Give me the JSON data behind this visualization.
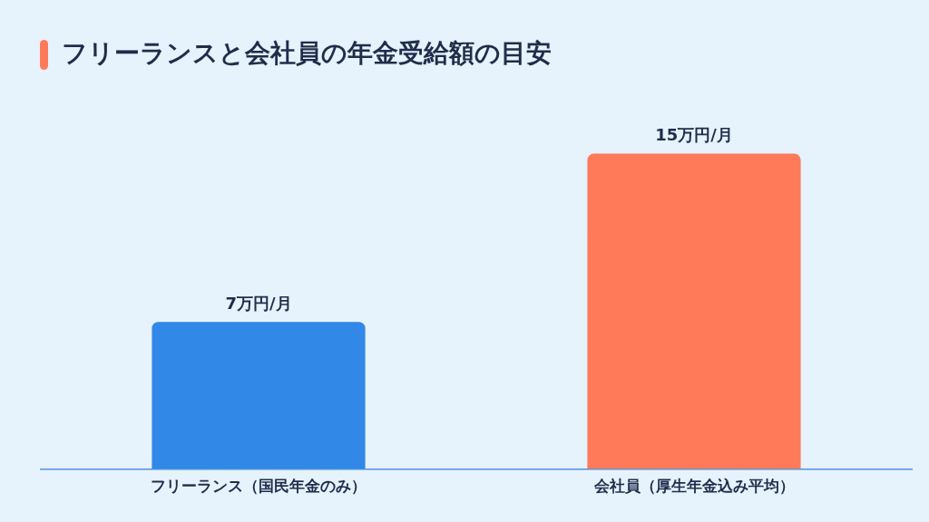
{
  "chart_data": {
    "type": "bar",
    "title": "フリーランスと会社員の年金受給額の目安",
    "categories": [
      "フリーランス（国民年金のみ）",
      "会社員（厚生年金込み平均）"
    ],
    "values": [
      7,
      15
    ],
    "colors": [
      "#3288e6",
      "#ff7a59"
    ],
    "value_labels": [
      "7万円/月",
      "15万円/月"
    ],
    "grid": false,
    "legend": false
  }
}
